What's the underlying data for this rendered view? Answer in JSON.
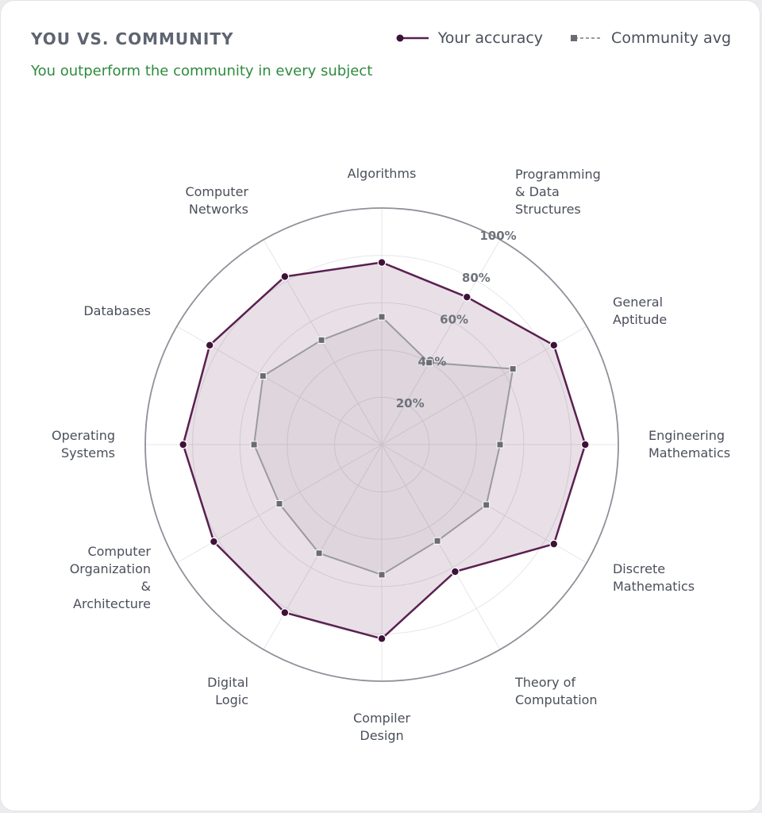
{
  "header": {
    "title": "YOU VS. COMMUNITY",
    "subtitle": "You outperform the community in every subject"
  },
  "legend": {
    "you_label": "Your accuracy",
    "community_label": "Community avg"
  },
  "colors": {
    "you": "#5a2050",
    "you_fill": "#5a2050",
    "community": "#9a9aa2",
    "community_marker": "#6b6b72",
    "subtitle": "#2e8b3e",
    "grid": "#e6e6ea",
    "outer_ring": "#8e9199"
  },
  "chart_data": {
    "type": "radar",
    "title": "YOU VS. COMMUNITY",
    "categories": [
      "Algorithms",
      "Programming & Data Structures",
      "General Aptitude",
      "Engineering Mathematics",
      "Discrete Mathematics",
      "Theory of Computation",
      "Compiler Design",
      "Digital Logic",
      "Computer Organization & Architecture",
      "Operating Systems",
      "Databases",
      "Computer Networks"
    ],
    "r_ticks": [
      "20%",
      "40%",
      "60%",
      "80%",
      "100%"
    ],
    "r_range": [
      0,
      100
    ],
    "series": [
      {
        "name": "Your accuracy",
        "values": [
          77,
          72,
          84,
          86,
          84,
          62,
          82,
          82,
          82,
          84,
          84,
          82
        ]
      },
      {
        "name": "Community avg",
        "values": [
          54,
          40,
          64,
          50,
          51,
          47,
          55,
          53,
          50,
          54,
          58,
          51
        ]
      }
    ],
    "legend_position": "top-right",
    "grid": true
  }
}
